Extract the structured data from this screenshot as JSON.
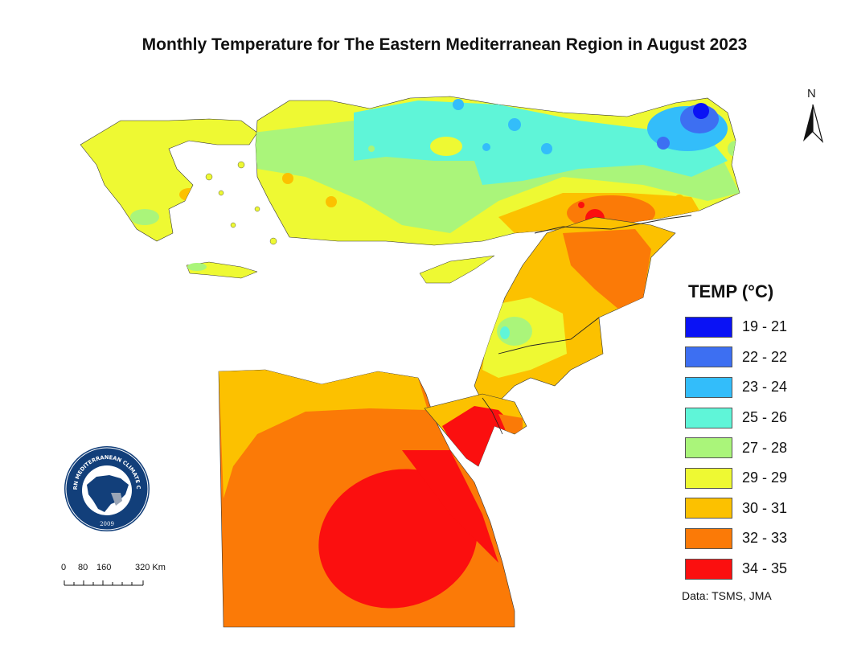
{
  "title": "Monthly Temperature for The Eastern Mediterranean Region in August 2023",
  "north_label": "N",
  "legend": {
    "title": "TEMP (°C)",
    "items": [
      {
        "label": "19 - 21",
        "color": "#0a12f5"
      },
      {
        "label": "22 - 22",
        "color": "#3d6ff2"
      },
      {
        "label": "23 - 24",
        "color": "#33bdfa"
      },
      {
        "label": "25 - 26",
        "color": "#5ff5d8"
      },
      {
        "label": "27 - 28",
        "color": "#aaf57a"
      },
      {
        "label": "29 - 29",
        "color": "#eef933"
      },
      {
        "label": "30 - 31",
        "color": "#fcc100"
      },
      {
        "label": "32 - 33",
        "color": "#fb7a07"
      },
      {
        "label": "34 - 35",
        "color": "#fb0f0f"
      }
    ]
  },
  "credit": "Data: TSMS, JMA",
  "scalebar": {
    "ticks": [
      "0",
      "80",
      "160",
      "320 Km"
    ]
  },
  "logo": {
    "text": "EASTERN MEDITERRANEAN CLIMATE CENTRE",
    "year": "2009"
  }
}
